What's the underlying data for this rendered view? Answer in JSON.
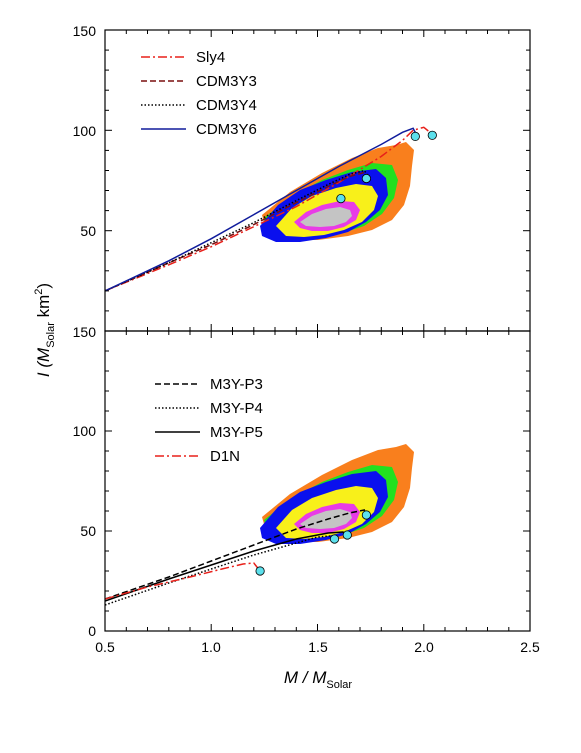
{
  "chart_data": [
    {
      "type": "line",
      "panel": "top",
      "x_range": [
        0.5,
        2.5
      ],
      "ylim": [
        0,
        150
      ],
      "y_ticks": [
        50,
        100,
        150
      ],
      "series": [
        {
          "name": "Sly4",
          "color": "#e8201a",
          "style": "dashdot",
          "x": [
            0.5,
            0.8,
            1.0,
            1.2,
            1.4,
            1.6,
            1.8,
            1.9,
            1.95,
            2.0,
            2.04
          ],
          "y": [
            20,
            33,
            42,
            52,
            62,
            74,
            87,
            95,
            100,
            101.5,
            98
          ]
        },
        {
          "name": "CDM3Y3",
          "color": "#7a0f0f",
          "style": "dash",
          "x": [
            0.5,
            0.8,
            1.0,
            1.2,
            1.4,
            1.55,
            1.65,
            1.72,
            1.74
          ],
          "y": [
            20,
            34,
            43,
            53,
            64,
            72,
            77,
            79,
            76
          ]
        },
        {
          "name": "CDM3Y4",
          "color": "#000000",
          "style": "dot",
          "x": [
            0.5,
            0.8,
            1.0,
            1.2,
            1.4,
            1.55,
            1.65,
            1.72,
            1.74
          ],
          "y": [
            20,
            34,
            44,
            54,
            65,
            73,
            78,
            80,
            77
          ]
        },
        {
          "name": "CDM3Y6",
          "color": "#101c9c",
          "style": "solid",
          "x": [
            0.5,
            0.8,
            1.0,
            1.2,
            1.4,
            1.6,
            1.8,
            1.9,
            1.95,
            1.97
          ],
          "y": [
            20,
            35,
            46,
            58,
            70,
            82,
            93,
            99,
            101,
            97
          ]
        }
      ],
      "endpoints": [
        {
          "x": 1.61,
          "y": 66
        },
        {
          "x": 1.73,
          "y": 76
        },
        {
          "x": 1.96,
          "y": 97
        },
        {
          "x": 2.04,
          "y": 97.5
        }
      ]
    },
    {
      "type": "line",
      "panel": "bottom",
      "x_range": [
        0.5,
        2.5
      ],
      "ylim": [
        0,
        150
      ],
      "x_ticks": [
        0.5,
        1.0,
        1.5,
        2.0,
        2.5
      ],
      "y_ticks": [
        0,
        50,
        100,
        150
      ],
      "series": [
        {
          "name": "M3Y-P3",
          "color": "#000000",
          "style": "dash",
          "x": [
            0.5,
            0.8,
            1.0,
            1.2,
            1.4,
            1.55,
            1.65,
            1.72,
            1.73
          ],
          "y": [
            16,
            27,
            35,
            43,
            51,
            56,
            59,
            60.5,
            58
          ]
        },
        {
          "name": "M3Y-P4",
          "color": "#000000",
          "style": "dot",
          "x": [
            0.5,
            0.8,
            1.0,
            1.2,
            1.4,
            1.5,
            1.56,
            1.58
          ],
          "y": [
            13,
            24,
            31,
            38,
            44,
            47,
            47.5,
            45
          ]
        },
        {
          "name": "M3Y-P5",
          "color": "#000000",
          "style": "solid",
          "x": [
            0.5,
            0.8,
            1.0,
            1.2,
            1.4,
            1.55,
            1.62,
            1.64
          ],
          "y": [
            15,
            26,
            33,
            40,
            46,
            49,
            49.5,
            48
          ]
        },
        {
          "name": "D1N",
          "color": "#e8201a",
          "style": "dashdot",
          "x": [
            0.5,
            0.7,
            0.9,
            1.05,
            1.15,
            1.2,
            1.23
          ],
          "y": [
            16,
            22,
            27,
            31,
            33.5,
            34,
            30
          ]
        }
      ],
      "endpoints": [
        {
          "x": 1.23,
          "y": 30
        },
        {
          "x": 1.58,
          "y": 46
        },
        {
          "x": 1.64,
          "y": 48
        },
        {
          "x": 1.73,
          "y": 58
        }
      ]
    }
  ],
  "x_tick_labels": [
    "0.5",
    "1.0",
    "1.5",
    "2.0",
    "2.5"
  ],
  "top_y_tick_labels": [
    "50",
    "100",
    "150"
  ],
  "bottom_y_tick_labels": [
    "0",
    "50",
    "100",
    "150"
  ],
  "x_label_main": "M / M",
  "x_label_sub": "Solar",
  "y_label_main": "I (M",
  "y_label_sub": "Solar",
  "y_label_tail": " km",
  "y_label_sup": "2",
  "y_label_close": ")",
  "colors": {
    "orange": "#f97f1d",
    "green": "#22e01f",
    "blue": "#0a10ee",
    "yellow": "#f8f01a",
    "magenta": "#e83ce6",
    "gray": "#c4c4c4",
    "marker": "#5ce0ec"
  }
}
